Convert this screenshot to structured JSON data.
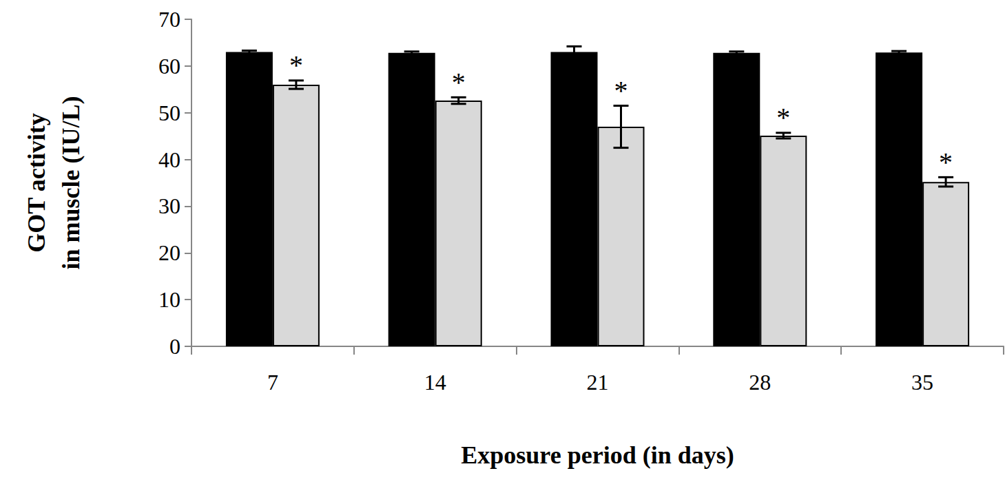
{
  "chart_data": {
    "type": "bar",
    "x_label": "Exposure period (in days)",
    "y_label": "GOT activity\nin muscle (IU/L)",
    "categories": [
      "7",
      "14",
      "21",
      "28",
      "35"
    ],
    "series": [
      {
        "color": "#000000",
        "values": [
          63.0,
          62.8,
          63.0,
          62.8,
          62.9
        ],
        "errors": [
          0.3,
          0.3,
          1.2,
          0.3,
          0.3
        ]
      },
      {
        "color": "#d9d9d9",
        "values": [
          56.0,
          52.6,
          47.0,
          45.1,
          35.2
        ],
        "errors": [
          0.9,
          0.7,
          4.5,
          0.6,
          1.0
        ],
        "annotations": [
          "*",
          "*",
          "*",
          "*",
          "*"
        ]
      }
    ],
    "ylim": [
      0,
      70
    ],
    "yticks": [
      0,
      10,
      20,
      30,
      40,
      50,
      60,
      70
    ],
    "grid": false
  }
}
